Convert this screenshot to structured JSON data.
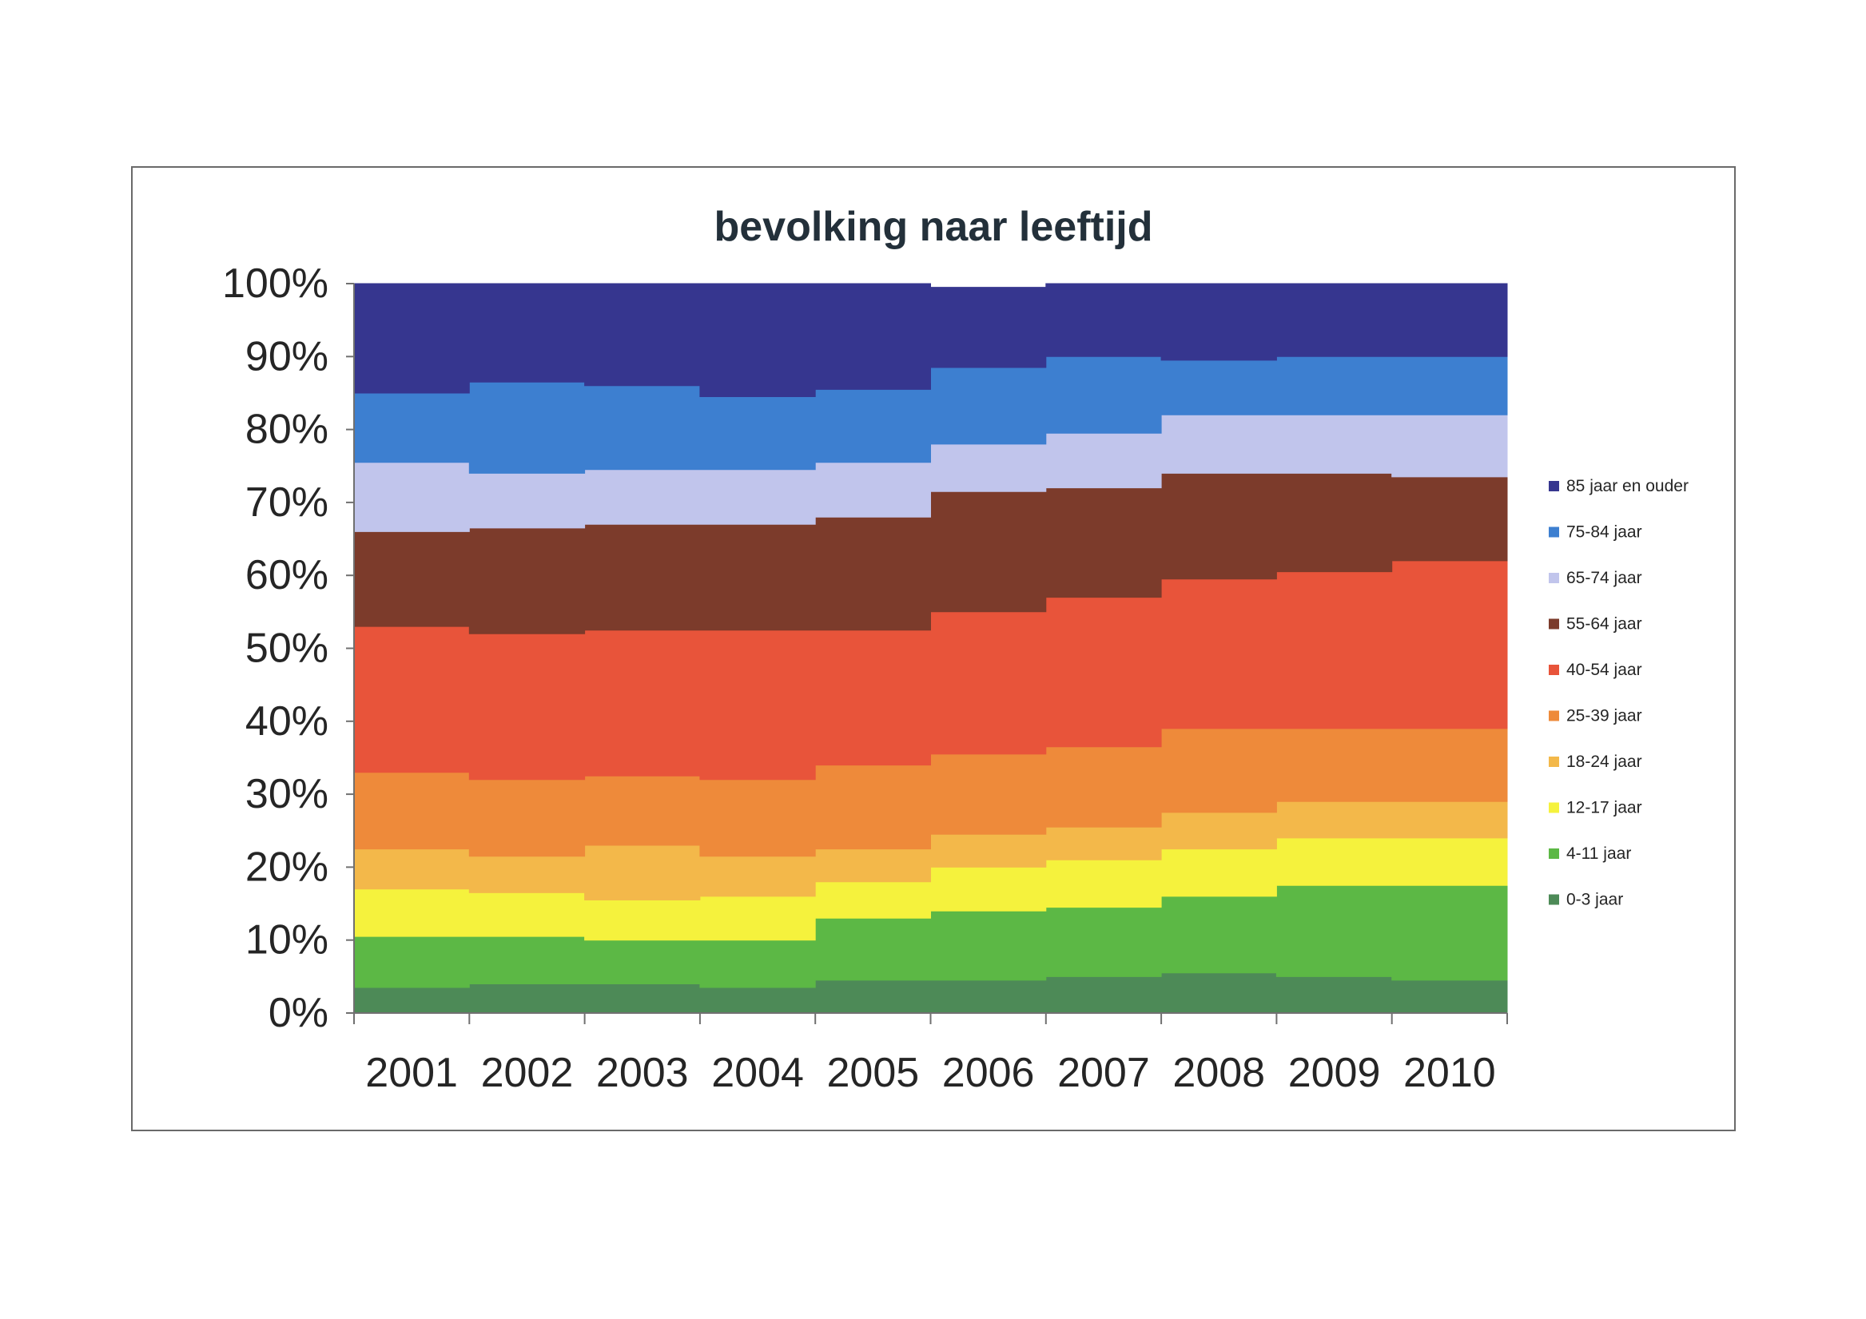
{
  "chart_data": {
    "type": "area",
    "stacked": true,
    "stepped": true,
    "title": "bevolking naar leeftijd",
    "categories": [
      "2001",
      "2002",
      "2003",
      "2004",
      "2005",
      "2006",
      "2007",
      "2008",
      "2009",
      "2010"
    ],
    "y_ticks": [
      "0%",
      "10%",
      "20%",
      "30%",
      "40%",
      "50%",
      "60%",
      "70%",
      "80%",
      "90%",
      "100%"
    ],
    "ylim": [
      0,
      100
    ],
    "legend_position": "right",
    "series": [
      {
        "name": "0-3 jaar",
        "color": "#4d8a57",
        "values": [
          3.5,
          4.0,
          4.0,
          3.5,
          4.5,
          4.5,
          5.0,
          5.5,
          5.0,
          4.5
        ]
      },
      {
        "name": "4-11 jaar",
        "color": "#5cb845",
        "values": [
          7.0,
          6.5,
          6.0,
          6.5,
          8.5,
          9.5,
          9.5,
          10.5,
          12.5,
          13.0
        ]
      },
      {
        "name": "12-17 jaar",
        "color": "#f5f23d",
        "values": [
          6.5,
          6.0,
          5.5,
          6.0,
          5.0,
          6.0,
          6.5,
          6.5,
          6.5,
          6.5
        ]
      },
      {
        "name": "18-24 jaar",
        "color": "#f3b84a",
        "values": [
          5.5,
          5.0,
          7.5,
          5.5,
          4.5,
          4.5,
          4.5,
          5.0,
          5.0,
          5.0
        ]
      },
      {
        "name": "25-39 jaar",
        "color": "#ee8a3a",
        "values": [
          10.5,
          10.5,
          9.5,
          10.5,
          11.5,
          11.0,
          11.0,
          11.5,
          10.0,
          10.0
        ]
      },
      {
        "name": "40-54 jaar",
        "color": "#e8543a",
        "values": [
          20.0,
          20.0,
          20.0,
          20.5,
          18.5,
          19.5,
          20.5,
          20.5,
          21.5,
          23.0
        ]
      },
      {
        "name": "55-64 jaar",
        "color": "#7c3b2b",
        "values": [
          13.0,
          14.5,
          14.5,
          14.5,
          15.5,
          16.5,
          15.0,
          14.5,
          13.5,
          11.5
        ]
      },
      {
        "name": "65-74 jaar",
        "color": "#c1c5ec",
        "values": [
          9.5,
          7.5,
          7.5,
          7.5,
          7.5,
          6.5,
          7.5,
          8.0,
          8.0,
          8.5
        ]
      },
      {
        "name": "75-84 jaar",
        "color": "#3d7fd0",
        "values": [
          9.5,
          12.5,
          11.5,
          10.0,
          10.0,
          10.5,
          10.5,
          7.5,
          8.0,
          8.0
        ]
      },
      {
        "name": "85 jaar en ouder",
        "color": "#36368f",
        "values": [
          15.0,
          13.5,
          14.0,
          15.5,
          14.5,
          11.0,
          10.0,
          10.5,
          10.0,
          10.0
        ]
      }
    ]
  }
}
